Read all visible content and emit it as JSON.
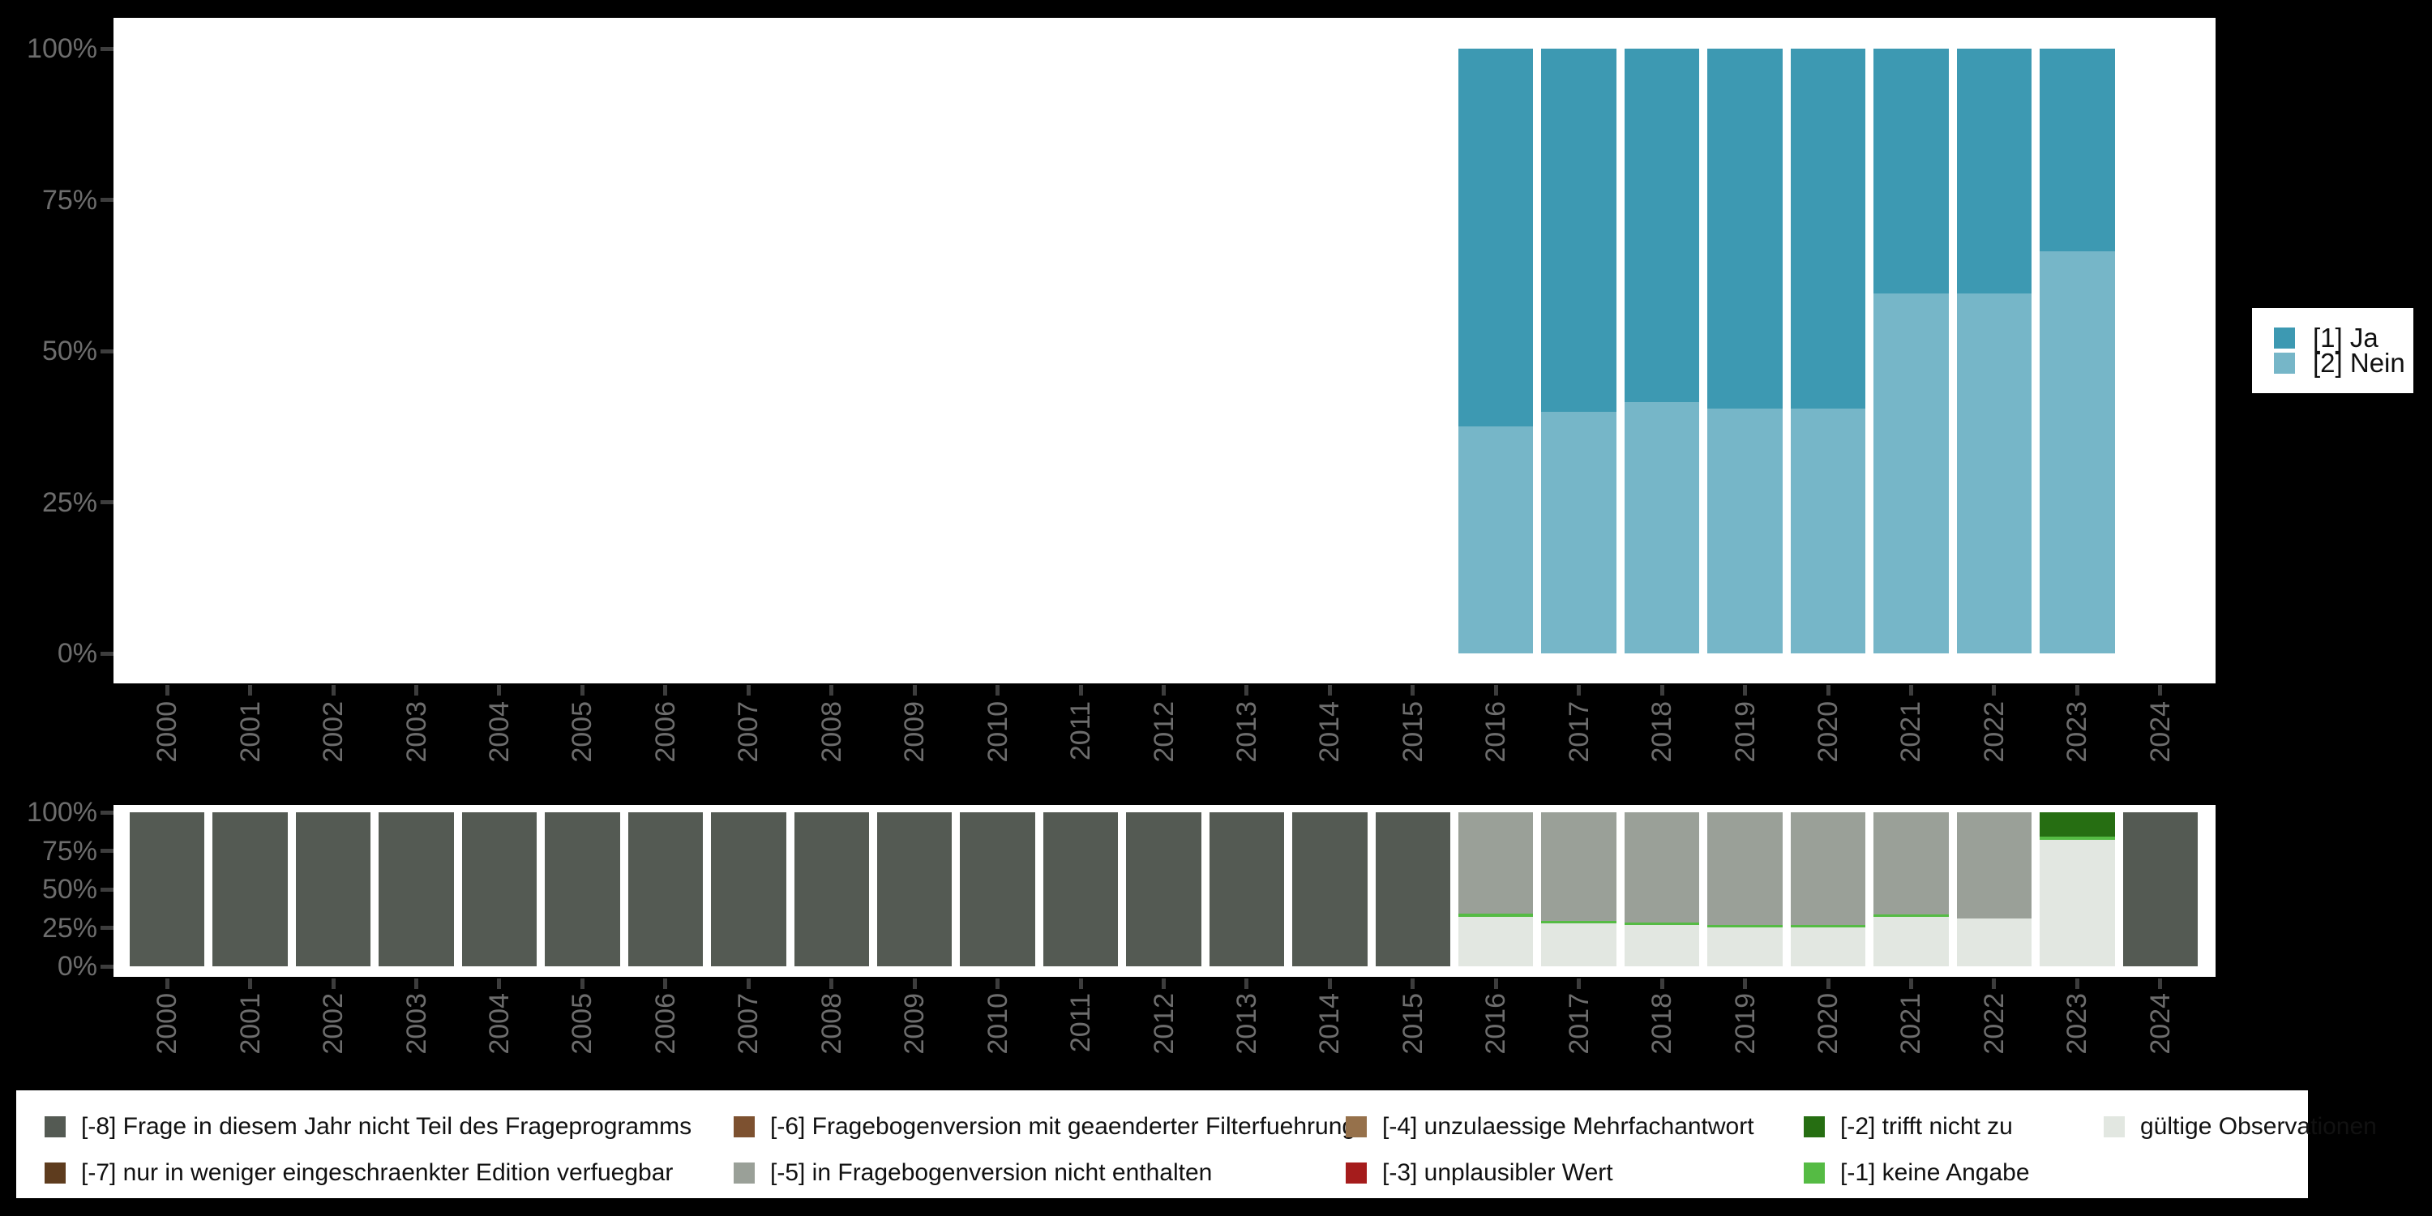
{
  "page": {
    "background": "#000000",
    "plot_background": "#ffffff"
  },
  "axes": {
    "label_color": "#6d6d6d",
    "tick_color": "#3d3d3d",
    "y_tick_labels_top_to_bottom": [
      "100%",
      "75%",
      "50%",
      "25%",
      "0%"
    ],
    "years": [
      "2000",
      "2001",
      "2002",
      "2003",
      "2004",
      "2005",
      "2006",
      "2007",
      "2008",
      "2009",
      "2010",
      "2011",
      "2012",
      "2013",
      "2014",
      "2015",
      "2016",
      "2017",
      "2018",
      "2019",
      "2020",
      "2021",
      "2022",
      "2023",
      "2024"
    ]
  },
  "legend_top": {
    "items": [
      {
        "key": "ja",
        "label": "[1] Ja",
        "color": "#3d99b2"
      },
      {
        "key": "nein",
        "label": "[2] Nein",
        "color": "#76b6c8"
      }
    ]
  },
  "legend_bottom": {
    "columns": [
      [
        {
          "key": "m8",
          "label": "[-8] Frage in diesem Jahr nicht Teil des Frageprogramms",
          "color": "#545a53"
        },
        {
          "key": "m7",
          "label": "[-7] nur in weniger eingeschraenkter Edition verfuegbar",
          "color": "#5e3c1e"
        }
      ],
      [
        {
          "key": "m6",
          "label": "[-6] Fragebogenversion mit geaenderter Filterfuehrung",
          "color": "#7d5130"
        },
        {
          "key": "m5",
          "label": "[-5] in Fragebogenversion nicht enthalten",
          "color": "#9aa098"
        }
      ],
      [
        {
          "key": "m4",
          "label": "[-4] unzulaessige Mehrfachantwort",
          "color": "#96714b"
        },
        {
          "key": "m3",
          "label": "[-3] unplausibler Wert",
          "color": "#a51c1c"
        }
      ],
      [
        {
          "key": "m2",
          "label": "[-2] trifft nicht zu",
          "color": "#266e12"
        },
        {
          "key": "m1",
          "label": "[-1] keine Angabe",
          "color": "#55bb44"
        }
      ],
      [
        {
          "key": "valid",
          "label": "gültige Observationen",
          "color": "#e2e7e1"
        }
      ]
    ]
  },
  "chart_data": [
    {
      "name": "answer-distribution",
      "type": "bar",
      "stacked": true,
      "unit": "percent",
      "ylim": [
        0,
        100
      ],
      "y_tick_labels": [
        "0%",
        "25%",
        "50%",
        "75%",
        "100%"
      ],
      "legend_position": "right",
      "grid": false,
      "categories": [
        "2000",
        "2001",
        "2002",
        "2003",
        "2004",
        "2005",
        "2006",
        "2007",
        "2008",
        "2009",
        "2010",
        "2011",
        "2012",
        "2013",
        "2014",
        "2015",
        "2016",
        "2017",
        "2018",
        "2019",
        "2020",
        "2021",
        "2022",
        "2023",
        "2024"
      ],
      "series": [
        {
          "key": "ja",
          "name": "[1] Ja",
          "color": "#3d99b2",
          "values": [
            0,
            0,
            0,
            0,
            0,
            0,
            0,
            0,
            0,
            0,
            0,
            0,
            0,
            0,
            0,
            0,
            62.5,
            60,
            58.5,
            59.5,
            59.5,
            40.5,
            40.5,
            33.5,
            0
          ]
        },
        {
          "key": "nein",
          "name": "[2] Nein",
          "color": "#76b6c8",
          "values": [
            0,
            0,
            0,
            0,
            0,
            0,
            0,
            0,
            0,
            0,
            0,
            0,
            0,
            0,
            0,
            0,
            37.5,
            40,
            41.5,
            40.5,
            40.5,
            59.5,
            59.5,
            66.5,
            0
          ]
        }
      ]
    },
    {
      "name": "missing-values-and-valid-observations",
      "type": "bar",
      "stacked": true,
      "unit": "percent",
      "ylim": [
        0,
        100
      ],
      "y_tick_labels": [
        "0%",
        "25%",
        "50%",
        "75%",
        "100%"
      ],
      "legend_position": "bottom",
      "grid": false,
      "categories": [
        "2000",
        "2001",
        "2002",
        "2003",
        "2004",
        "2005",
        "2006",
        "2007",
        "2008",
        "2009",
        "2010",
        "2011",
        "2012",
        "2013",
        "2014",
        "2015",
        "2016",
        "2017",
        "2018",
        "2019",
        "2020",
        "2021",
        "2022",
        "2023",
        "2024"
      ],
      "series": [
        {
          "key": "m8",
          "name": "[-8] Frage in diesem Jahr nicht Teil des Frageprogramms",
          "color": "#545a53",
          "values": [
            100,
            100,
            100,
            100,
            100,
            100,
            100,
            100,
            100,
            100,
            100,
            100,
            100,
            100,
            100,
            100,
            0,
            0,
            0,
            0,
            0,
            0,
            0,
            0,
            100
          ]
        },
        {
          "key": "m5",
          "name": "[-5] in Fragebogenversion nicht enthalten",
          "color": "#9aa098",
          "values": [
            0,
            0,
            0,
            0,
            0,
            0,
            0,
            0,
            0,
            0,
            0,
            0,
            0,
            0,
            0,
            0,
            66,
            70.5,
            71.5,
            73,
            73,
            66.5,
            69,
            0,
            0
          ]
        },
        {
          "key": "m2",
          "name": "[-2] trifft nicht zu",
          "color": "#266e12",
          "values": [
            0,
            0,
            0,
            0,
            0,
            0,
            0,
            0,
            0,
            0,
            0,
            0,
            0,
            0,
            0,
            0,
            0,
            0,
            0,
            0,
            0,
            0,
            0,
            16,
            0
          ]
        },
        {
          "key": "m1",
          "name": "[-1] keine Angabe",
          "color": "#55bb44",
          "values": [
            0,
            0,
            0,
            0,
            0,
            0,
            0,
            0,
            0,
            0,
            0,
            0,
            0,
            0,
            0,
            0,
            2,
            1.5,
            1.5,
            1.5,
            1.5,
            1.5,
            0,
            2,
            0
          ]
        },
        {
          "key": "valid",
          "name": "gültige Observationen",
          "color": "#e2e7e1",
          "values": [
            0,
            0,
            0,
            0,
            0,
            0,
            0,
            0,
            0,
            0,
            0,
            0,
            0,
            0,
            0,
            0,
            32,
            28,
            27,
            25.5,
            25.5,
            32,
            31,
            82,
            0
          ]
        }
      ]
    }
  ]
}
